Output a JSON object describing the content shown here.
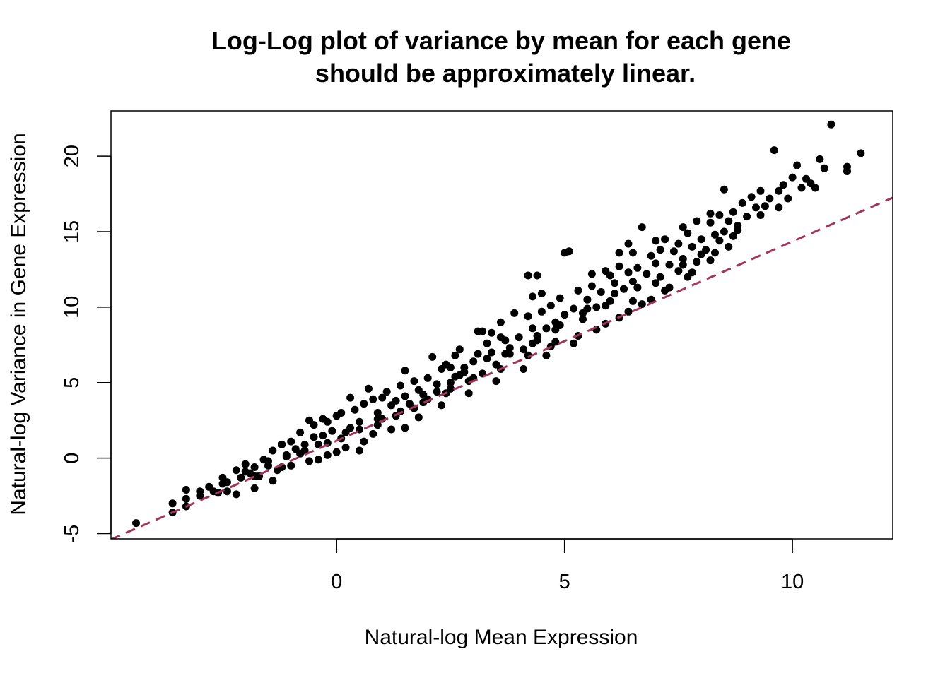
{
  "chart_data": {
    "type": "scatter",
    "title_line1": "Log-Log plot of variance by mean for each gene",
    "title_line2": "should be approximately linear.",
    "xlabel": "Natural-log Mean Expression",
    "ylabel": "Natural-log Variance in Gene Expression",
    "xlim": [
      -4.95,
      12.2
    ],
    "ylim": [
      -5.35,
      23.0
    ],
    "xticks": [
      0,
      5,
      10
    ],
    "yticks": [
      -5,
      0,
      5,
      10,
      15,
      20
    ],
    "xtick_labels": [
      "0",
      "5",
      "10"
    ],
    "ytick_labels": [
      "-5",
      "0",
      "5",
      "10",
      "15",
      "20"
    ],
    "grid": false,
    "legend": "none",
    "point_color": "#000000",
    "reference_line": {
      "slope": 1.32,
      "intercept": 1.15,
      "style": "dashed",
      "color": "#A0365E"
    },
    "points": [
      [
        -4.4,
        -4.3
      ],
      [
        -3.6,
        -3.0
      ],
      [
        -3.6,
        -3.6
      ],
      [
        -3.3,
        -2.1
      ],
      [
        -3.3,
        -2.7
      ],
      [
        -3.3,
        -3.2
      ],
      [
        -3.0,
        -2.2
      ],
      [
        -3.0,
        -2.5
      ],
      [
        -2.8,
        -1.9
      ],
      [
        -2.7,
        -2.2
      ],
      [
        -2.6,
        -2.3
      ],
      [
        -2.5,
        -1.7
      ],
      [
        -2.4,
        -1.6
      ],
      [
        -2.4,
        -2.2
      ],
      [
        -2.2,
        -0.8
      ],
      [
        -2.1,
        -1.3
      ],
      [
        -2.0,
        -0.4
      ],
      [
        -1.9,
        -1.0
      ],
      [
        -1.8,
        -0.6
      ],
      [
        -1.7,
        -1.2
      ],
      [
        -1.6,
        -0.1
      ],
      [
        -1.5,
        -0.5
      ],
      [
        -1.4,
        0.5
      ],
      [
        -1.3,
        -0.8
      ],
      [
        -1.2,
        0.9
      ],
      [
        -1.1,
        0.2
      ],
      [
        -1.0,
        1.1
      ],
      [
        -0.9,
        0.6
      ],
      [
        -0.8,
        1.7
      ],
      [
        -0.7,
        0.9
      ],
      [
        -0.6,
        2.5
      ],
      [
        -0.5,
        2.2
      ],
      [
        -0.5,
        1.4
      ],
      [
        -0.4,
        0.9
      ],
      [
        -0.3,
        2.6
      ],
      [
        -0.2,
        2.4
      ],
      [
        -0.1,
        1.8
      ],
      [
        0.0,
        2.8
      ],
      [
        0.1,
        3.0
      ],
      [
        0.2,
        1.7
      ],
      [
        0.3,
        4.0
      ],
      [
        0.4,
        3.2
      ],
      [
        0.5,
        2.4
      ],
      [
        0.6,
        3.6
      ],
      [
        0.7,
        4.6
      ],
      [
        0.8,
        3.9
      ],
      [
        0.9,
        3.0
      ],
      [
        0.9,
        2.2
      ],
      [
        1.0,
        4.0
      ],
      [
        1.1,
        4.4
      ],
      [
        1.2,
        3.5
      ],
      [
        1.3,
        2.8
      ],
      [
        1.4,
        4.8
      ],
      [
        1.5,
        4.1
      ],
      [
        1.5,
        5.8
      ],
      [
        1.6,
        3.6
      ],
      [
        1.7,
        5.1
      ],
      [
        1.8,
        4.5
      ],
      [
        1.9,
        3.7
      ],
      [
        2.0,
        5.3
      ],
      [
        2.1,
        6.7
      ],
      [
        2.2,
        4.4
      ],
      [
        2.3,
        5.9
      ],
      [
        2.4,
        6.2
      ],
      [
        2.5,
        5.0
      ],
      [
        2.6,
        6.8
      ],
      [
        2.6,
        5.4
      ],
      [
        2.7,
        7.2
      ],
      [
        2.8,
        6.0
      ],
      [
        2.9,
        5.1
      ],
      [
        3.0,
        6.4
      ],
      [
        3.1,
        8.4
      ],
      [
        3.2,
        8.4
      ],
      [
        3.2,
        5.6
      ],
      [
        3.3,
        7.6
      ],
      [
        3.4,
        7.0
      ],
      [
        3.5,
        6.2
      ],
      [
        3.6,
        9.0
      ],
      [
        3.7,
        7.8
      ],
      [
        3.8,
        6.9
      ],
      [
        3.9,
        9.6
      ],
      [
        4.0,
        8.0
      ],
      [
        4.1,
        7.2
      ],
      [
        4.2,
        9.4
      ],
      [
        4.3,
        8.6
      ],
      [
        4.4,
        7.8
      ],
      [
        4.5,
        9.7
      ],
      [
        4.6,
        8.6
      ],
      [
        4.7,
        10.1
      ],
      [
        4.8,
        9.0
      ],
      [
        4.8,
        7.7
      ],
      [
        4.9,
        10.6
      ],
      [
        5.0,
        9.5
      ],
      [
        5.0,
        13.6
      ],
      [
        5.1,
        13.7
      ],
      [
        5.2,
        9.9
      ],
      [
        5.3,
        11.1
      ],
      [
        5.4,
        9.6
      ],
      [
        5.5,
        10.5
      ],
      [
        5.6,
        11.4
      ],
      [
        5.7,
        10.0
      ],
      [
        5.8,
        11.0
      ],
      [
        5.9,
        12.4
      ],
      [
        6.0,
        10.4
      ],
      [
        6.1,
        11.6
      ],
      [
        6.2,
        12.7
      ],
      [
        6.3,
        11.2
      ],
      [
        6.4,
        12.3
      ],
      [
        6.5,
        13.6
      ],
      [
        6.5,
        11.7
      ],
      [
        6.6,
        12.6
      ],
      [
        6.7,
        15.3
      ],
      [
        6.8,
        12.2
      ],
      [
        6.9,
        13.4
      ],
      [
        7.0,
        12.9
      ],
      [
        7.1,
        13.8
      ],
      [
        7.2,
        14.5
      ],
      [
        7.3,
        12.8
      ],
      [
        7.4,
        13.7
      ],
      [
        7.5,
        14.2
      ],
      [
        7.6,
        13.2
      ],
      [
        7.7,
        14.9
      ],
      [
        7.8,
        14.0
      ],
      [
        7.9,
        15.7
      ],
      [
        8.0,
        14.5
      ],
      [
        8.1,
        13.8
      ],
      [
        8.2,
        15.6
      ],
      [
        8.3,
        14.8
      ],
      [
        8.4,
        16.1
      ],
      [
        8.5,
        15.0
      ],
      [
        8.6,
        15.7
      ],
      [
        8.7,
        16.3
      ],
      [
        8.8,
        15.4
      ],
      [
        8.9,
        16.9
      ],
      [
        9.0,
        16.0
      ],
      [
        9.1,
        17.3
      ],
      [
        9.2,
        16.6
      ],
      [
        9.3,
        17.7
      ],
      [
        9.4,
        16.7
      ],
      [
        9.5,
        17.2
      ],
      [
        9.6,
        20.4
      ],
      [
        9.7,
        17.7
      ],
      [
        9.8,
        18.1
      ],
      [
        9.9,
        17.2
      ],
      [
        10.0,
        18.6
      ],
      [
        10.1,
        19.4
      ],
      [
        10.2,
        17.9
      ],
      [
        10.3,
        18.5
      ],
      [
        10.4,
        18.2
      ],
      [
        10.5,
        17.9
      ],
      [
        10.6,
        19.8
      ],
      [
        10.7,
        19.2
      ],
      [
        10.85,
        22.1
      ],
      [
        11.2,
        19.3
      ],
      [
        11.2,
        19.0
      ],
      [
        11.5,
        20.2
      ],
      [
        2.5,
        6.0
      ],
      [
        2.7,
        5.5
      ],
      [
        3.4,
        8.3
      ],
      [
        3.6,
        8.0
      ],
      [
        4.3,
        10.7
      ],
      [
        4.5,
        10.9
      ],
      [
        5.6,
        12.2
      ],
      [
        6.0,
        12.1
      ],
      [
        6.2,
        13.6
      ],
      [
        6.4,
        14.2
      ],
      [
        7.0,
        14.4
      ],
      [
        7.6,
        15.3
      ],
      [
        8.2,
        16.2
      ],
      [
        8.5,
        17.8
      ],
      [
        4.2,
        12.1
      ],
      [
        4.4,
        12.1
      ],
      [
        -0.2,
        1.0
      ],
      [
        0.3,
        2.0
      ],
      [
        1.0,
        2.6
      ],
      [
        1.4,
        3.1
      ],
      [
        2.0,
        3.9
      ],
      [
        2.4,
        4.3
      ],
      [
        3.0,
        5.3
      ],
      [
        3.6,
        5.9
      ],
      [
        4.2,
        6.8
      ],
      [
        4.7,
        7.4
      ],
      [
        5.3,
        8.1
      ],
      [
        5.9,
        8.9
      ],
      [
        6.4,
        9.7
      ],
      [
        6.9,
        10.5
      ],
      [
        7.3,
        11.3
      ],
      [
        7.8,
        12.3
      ],
      [
        8.2,
        13.1
      ],
      [
        8.6,
        14.0
      ],
      [
        -1.0,
        -0.5
      ],
      [
        -0.6,
        -0.2
      ],
      [
        -0.2,
        0.2
      ],
      [
        0.2,
        0.7
      ],
      [
        0.6,
        1.1
      ],
      [
        1.2,
        1.9
      ],
      [
        1.8,
        2.7
      ],
      [
        2.3,
        3.5
      ],
      [
        2.9,
        4.3
      ],
      [
        3.5,
        5.1
      ],
      [
        4.1,
        5.9
      ],
      [
        4.6,
        6.8
      ],
      [
        5.2,
        7.6
      ],
      [
        5.7,
        8.5
      ],
      [
        6.2,
        9.3
      ],
      [
        6.7,
        10.2
      ],
      [
        7.2,
        11.1
      ],
      [
        7.7,
        12.0
      ],
      [
        0.5,
        0.5
      ],
      [
        1.5,
        2.0
      ],
      [
        -2.2,
        -2.4
      ],
      [
        -1.8,
        -2.0
      ],
      [
        -1.4,
        -1.5
      ],
      [
        -1.8,
        -1.2
      ],
      [
        -1.2,
        -0.6
      ],
      [
        -0.8,
        0.3
      ],
      [
        -0.4,
        -0.1
      ],
      [
        0.0,
        0.4
      ],
      [
        0.8,
        1.6
      ],
      [
        1.7,
        3.3
      ],
      [
        2.2,
        4.9
      ],
      [
        2.8,
        5.7
      ],
      [
        3.3,
        6.6
      ],
      [
        3.8,
        7.3
      ],
      [
        4.4,
        8.1
      ],
      [
        4.9,
        8.8
      ],
      [
        5.5,
        9.9
      ],
      [
        6.1,
        10.9
      ],
      [
        6.6,
        11.3
      ],
      [
        7.1,
        12.0
      ],
      [
        7.6,
        12.8
      ],
      [
        8.0,
        13.5
      ],
      [
        8.4,
        14.4
      ],
      [
        8.8,
        15.1
      ],
      [
        9.3,
        16.1
      ],
      [
        9.7,
        16.6
      ],
      [
        -2.5,
        -1.3
      ],
      [
        -2.0,
        -0.9
      ],
      [
        -1.5,
        -0.2
      ],
      [
        -1.1,
        0.1
      ],
      [
        -0.7,
        0.5
      ],
      [
        -0.3,
        1.5
      ],
      [
        0.1,
        1.3
      ],
      [
        0.5,
        1.9
      ],
      [
        0.9,
        2.6
      ],
      [
        1.3,
        3.8
      ],
      [
        1.9,
        4.2
      ],
      [
        2.5,
        4.6
      ],
      [
        3.1,
        6.9
      ],
      [
        3.7,
        6.9
      ],
      [
        4.3,
        7.6
      ],
      [
        4.8,
        8.5
      ],
      [
        5.4,
        9.2
      ],
      [
        5.9,
        10.1
      ],
      [
        6.5,
        10.4
      ],
      [
        7.0,
        11.6
      ],
      [
        7.5,
        12.4
      ],
      [
        7.9,
        13.0
      ],
      [
        8.3,
        13.6
      ],
      [
        8.7,
        14.7
      ]
    ]
  }
}
